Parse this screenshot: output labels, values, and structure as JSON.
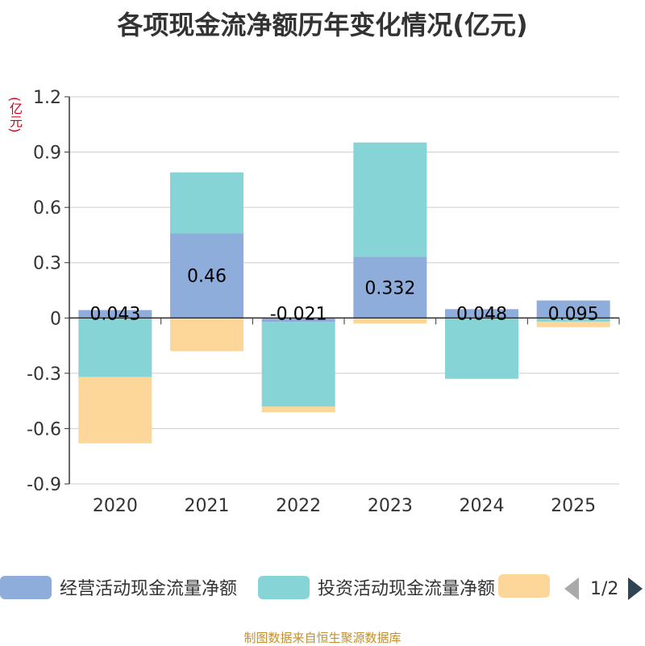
{
  "colors": {
    "operating": "#8eaddb",
    "investing": "#86d4d6",
    "financing": "#fdd69a",
    "title": "#333333",
    "unit": "#d0021b",
    "source": "#c0902e"
  },
  "legend": {
    "items": [
      {
        "label": "经营活动现金流量净额",
        "color": "#8eaddb"
      },
      {
        "label": "投资活动现金流量净额",
        "color": "#86d4d6"
      },
      {
        "label": "",
        "color": "#fdd69a"
      }
    ],
    "pager_text": "1/2",
    "prev_icon": "triangle-left-icon",
    "next_icon": "triangle-right-icon"
  },
  "source_text": "制图数据来自恒生聚源数据库",
  "chart_data": {
    "type": "bar",
    "stacked": true,
    "title": "各项现金流净额历年变化情况(亿元)",
    "unit_label": "(亿元)",
    "categories": [
      "2020",
      "2021",
      "2022",
      "2023",
      "2024",
      "2025"
    ],
    "yticks": [
      "1.2",
      "0.9",
      "0.6",
      "0.3",
      "0",
      "-0.3",
      "-0.6",
      "-0.9"
    ],
    "ylim": [
      -0.9,
      1.2
    ],
    "grid": true,
    "legend_position": "bottom",
    "series": [
      {
        "name": "经营活动现金流量净额",
        "values": [
          0.043,
          0.46,
          -0.021,
          0.332,
          0.048,
          0.095
        ]
      },
      {
        "name": "投资活动现金流量净额",
        "values": [
          -0.32,
          0.33,
          -0.46,
          0.62,
          -0.33,
          -0.02
        ]
      },
      {
        "name": "",
        "values": [
          -0.36,
          -0.18,
          -0.03,
          -0.03,
          0,
          -0.03
        ]
      }
    ],
    "data_labels": [
      "0.043",
      "0.46",
      "-0.021",
      "0.332",
      "0.048",
      "0.095"
    ]
  }
}
